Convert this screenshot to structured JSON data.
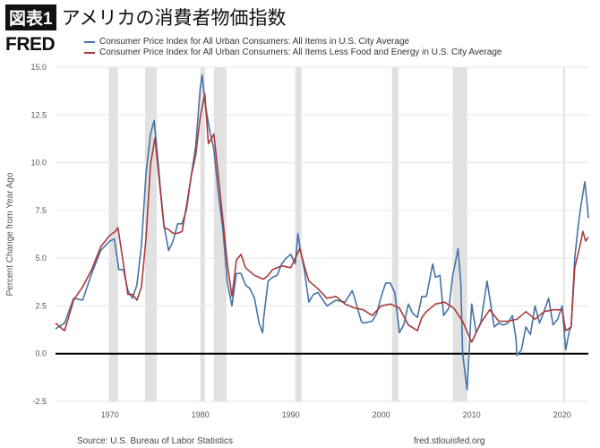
{
  "header": {
    "badge": "図表1",
    "title": "アメリカの消費者物価指数",
    "logo": "FRED"
  },
  "footer": {
    "source": "Source: U.S. Bureau of Labor Statistics",
    "site": "fred.stlouisfed.org"
  },
  "chart_data": {
    "type": "line",
    "ylabel": "Percent Change from Year Ago",
    "xlim": [
      1964,
      2022.9
    ],
    "ylim": [
      -2.5,
      15
    ],
    "yticks": [
      "-2.5",
      "0.0",
      "2.5",
      "5.0",
      "7.5",
      "10.0",
      "12.5",
      "15.0"
    ],
    "xticks": [
      "1970",
      "1980",
      "1990",
      "2000",
      "2010",
      "2020"
    ],
    "grid": true,
    "legend_placement": "top",
    "recessions": [
      [
        1969.9,
        1970.9
      ],
      [
        1973.9,
        1975.2
      ],
      [
        1980.0,
        1980.5
      ],
      [
        1981.5,
        1982.9
      ],
      [
        1990.5,
        1991.2
      ],
      [
        2001.2,
        2001.9
      ],
      [
        2007.9,
        2009.5
      ],
      [
        2020.1,
        2020.3
      ]
    ],
    "series": [
      {
        "name": "Consumer Price Index for All Urban Consumers: All Items in U.S. City Average",
        "color": "#4572a7",
        "x": [
          1964,
          1965,
          1966,
          1967,
          1968,
          1969,
          1970,
          1970.5,
          1971,
          1971.5,
          1972,
          1972.5,
          1973,
          1973.5,
          1974,
          1974.5,
          1974.9,
          1975.3,
          1975.6,
          1976,
          1976.5,
          1977,
          1977.5,
          1978,
          1978.5,
          1979,
          1979.5,
          1980,
          1980.2,
          1980.6,
          1981,
          1981.5,
          1982,
          1982.5,
          1983,
          1983.5,
          1984,
          1984.5,
          1985,
          1985.5,
          1986,
          1986.5,
          1986.9,
          1987,
          1987.5,
          1988,
          1988.5,
          1989,
          1989.5,
          1990,
          1990.5,
          1990.8,
          1991,
          1991.5,
          1992,
          1992.5,
          1993,
          1994,
          1995,
          1996,
          1996.8,
          1997,
          1997.8,
          1998,
          1999,
          1999.5,
          2000,
          2000.5,
          2001,
          2001.5,
          2001.9,
          2002,
          2002.5,
          2003,
          2003.5,
          2004,
          2004.5,
          2005,
          2005.7,
          2006,
          2006.5,
          2006.9,
          2007.5,
          2007.9,
          2008,
          2008.5,
          2008.8,
          2009,
          2009.5,
          2009.9,
          2010,
          2010.5,
          2011,
          2011.7,
          2012,
          2012.5,
          2013,
          2013.5,
          2014,
          2014.5,
          2014.9,
          2015,
          2015.5,
          2016,
          2016.5,
          2017,
          2017.5,
          2018,
          2018.5,
          2019,
          2019.5,
          2020,
          2020.4,
          2020.8,
          2021,
          2021.4,
          2021.8,
          2022,
          2022.5,
          2022.8,
          2022.9
        ],
        "values": [
          1.3,
          1.6,
          2.9,
          2.8,
          4.2,
          5.4,
          5.9,
          6.0,
          4.4,
          4.4,
          3.3,
          2.9,
          3.6,
          5.7,
          9.4,
          11.5,
          12.2,
          10.2,
          8.6,
          6.7,
          5.4,
          5.9,
          6.8,
          6.8,
          7.6,
          9.3,
          10.9,
          13.9,
          14.6,
          12.9,
          11.8,
          10.7,
          8.4,
          6.5,
          3.7,
          2.5,
          4.2,
          4.2,
          3.6,
          3.4,
          2.9,
          1.6,
          1.1,
          1.8,
          3.8,
          4.0,
          4.1,
          4.7,
          5.0,
          5.2,
          4.7,
          6.3,
          5.6,
          4.4,
          2.7,
          3.1,
          3.2,
          2.5,
          2.8,
          2.7,
          3.3,
          3.0,
          1.7,
          1.6,
          1.7,
          2.1,
          3.0,
          3.7,
          3.7,
          3.2,
          1.6,
          1.1,
          1.5,
          2.6,
          2.1,
          1.9,
          3.0,
          3.0,
          4.7,
          4.0,
          4.1,
          2.0,
          2.4,
          4.1,
          4.3,
          5.5,
          3.7,
          0.0,
          -1.9,
          1.8,
          2.6,
          1.1,
          1.6,
          3.8,
          2.9,
          1.4,
          1.6,
          1.5,
          1.6,
          2.0,
          0.8,
          -0.1,
          0.2,
          1.4,
          1.0,
          2.5,
          1.6,
          2.2,
          2.9,
          1.5,
          1.8,
          2.5,
          0.2,
          1.2,
          1.4,
          5.0,
          6.8,
          7.5,
          9.0,
          7.7,
          7.1
        ]
      },
      {
        "name": "Consumer Price Index for All Urban Consumers: All Items Less Food and Energy in U.S. City Average",
        "color": "#aa3939",
        "x": [
          1964,
          1965,
          1966,
          1967,
          1968,
          1969,
          1970,
          1970.6,
          1970.9,
          1971.5,
          1972,
          1972.5,
          1973,
          1973.5,
          1974,
          1974.5,
          1975,
          1975.5,
          1976,
          1976.5,
          1977,
          1977.5,
          1978,
          1978.5,
          1979,
          1979.5,
          1980,
          1980.5,
          1980.9,
          1981.5,
          1982,
          1982.5,
          1983,
          1983.5,
          1984,
          1984.5,
          1985,
          1986,
          1987,
          1987.5,
          1988,
          1989,
          1990,
          1990.5,
          1991,
          1991.5,
          1992,
          1993,
          1994,
          1995,
          1996,
          1997,
          1998,
          1999,
          2000,
          2001,
          2002,
          2003,
          2004,
          2004.5,
          2005,
          2006,
          2007,
          2008,
          2009,
          2010,
          2011,
          2012,
          2013,
          2014,
          2015,
          2016,
          2017,
          2018,
          2019,
          2020,
          2020.4,
          2021,
          2021.4,
          2021.9,
          2022.3,
          2022.6,
          2022.9
        ],
        "values": [
          1.6,
          1.2,
          2.8,
          3.5,
          4.4,
          5.6,
          6.2,
          6.4,
          6.6,
          4.7,
          3.1,
          3.1,
          2.8,
          3.5,
          6.0,
          9.9,
          11.3,
          8.9,
          6.6,
          6.5,
          6.3,
          6.3,
          6.4,
          7.8,
          9.3,
          10.4,
          12.4,
          13.6,
          11.0,
          11.5,
          9.3,
          7.0,
          4.7,
          3.0,
          4.9,
          5.2,
          4.5,
          4.1,
          3.9,
          4.1,
          4.4,
          4.6,
          4.5,
          5.0,
          5.5,
          4.6,
          3.8,
          3.4,
          2.9,
          3.0,
          2.6,
          2.4,
          2.3,
          2.0,
          2.5,
          2.6,
          2.4,
          1.5,
          1.2,
          1.9,
          2.2,
          2.6,
          2.7,
          2.4,
          1.7,
          0.6,
          1.6,
          2.3,
          1.7,
          1.7,
          1.8,
          2.2,
          1.8,
          2.2,
          2.3,
          2.3,
          1.2,
          1.4,
          4.5,
          5.5,
          6.4,
          5.9,
          6.1
        ]
      }
    ]
  }
}
